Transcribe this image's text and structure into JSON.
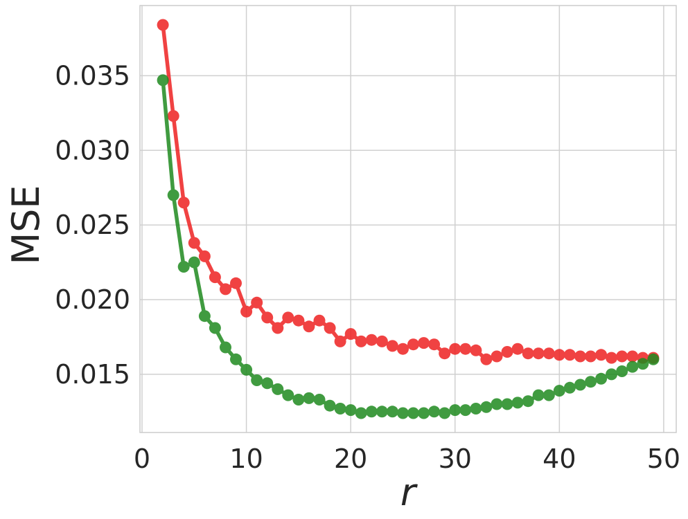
{
  "chart_data": {
    "type": "line",
    "title": "",
    "xlabel": "r",
    "ylabel": "MSE",
    "xlim": [
      -0.2,
      51.2
    ],
    "ylim": [
      0.0111,
      0.0397
    ],
    "xticks": [
      0,
      10,
      20,
      30,
      40,
      50
    ],
    "xtick_labels": [
      "0",
      "10",
      "20",
      "30",
      "40",
      "50"
    ],
    "yticks": [
      0.015,
      0.02,
      0.025,
      0.03,
      0.035
    ],
    "ytick_labels": [
      "0.015",
      "0.020",
      "0.025",
      "0.030",
      "0.035"
    ],
    "grid": true,
    "x": [
      2,
      3,
      4,
      5,
      6,
      7,
      8,
      9,
      10,
      11,
      12,
      13,
      14,
      15,
      16,
      17,
      18,
      19,
      20,
      21,
      22,
      23,
      24,
      25,
      26,
      27,
      28,
      29,
      30,
      31,
      32,
      33,
      34,
      35,
      36,
      37,
      38,
      39,
      40,
      41,
      42,
      43,
      44,
      45,
      46,
      47,
      48,
      49
    ],
    "series": [
      {
        "color": "#ee2222",
        "values": [
          0.0384,
          0.0323,
          0.0265,
          0.0238,
          0.0229,
          0.0215,
          0.0207,
          0.0211,
          0.0192,
          0.0198,
          0.0188,
          0.0181,
          0.0188,
          0.0186,
          0.0182,
          0.0186,
          0.0181,
          0.0172,
          0.0177,
          0.0172,
          0.0173,
          0.0172,
          0.0169,
          0.0167,
          0.017,
          0.0171,
          0.017,
          0.0164,
          0.0167,
          0.0167,
          0.0166,
          0.016,
          0.0162,
          0.0165,
          0.0167,
          0.0164,
          0.0164,
          0.0164,
          0.0163,
          0.0163,
          0.0162,
          0.0162,
          0.0163,
          0.0161,
          0.0162,
          0.0162,
          0.0161,
          0.0161
        ]
      },
      {
        "color": "#1f8a1f",
        "values": [
          0.0347,
          0.027,
          0.0222,
          0.0225,
          0.0189,
          0.0181,
          0.0168,
          0.016,
          0.0153,
          0.0146,
          0.0144,
          0.014,
          0.0136,
          0.0133,
          0.0134,
          0.0133,
          0.0129,
          0.0127,
          0.0126,
          0.0124,
          0.0125,
          0.0125,
          0.0125,
          0.0124,
          0.0124,
          0.0124,
          0.0125,
          0.0124,
          0.0126,
          0.0126,
          0.0127,
          0.0128,
          0.013,
          0.013,
          0.0131,
          0.0132,
          0.0136,
          0.0136,
          0.0139,
          0.0141,
          0.0143,
          0.0145,
          0.0147,
          0.015,
          0.0152,
          0.0155,
          0.0157,
          0.016
        ]
      }
    ]
  }
}
